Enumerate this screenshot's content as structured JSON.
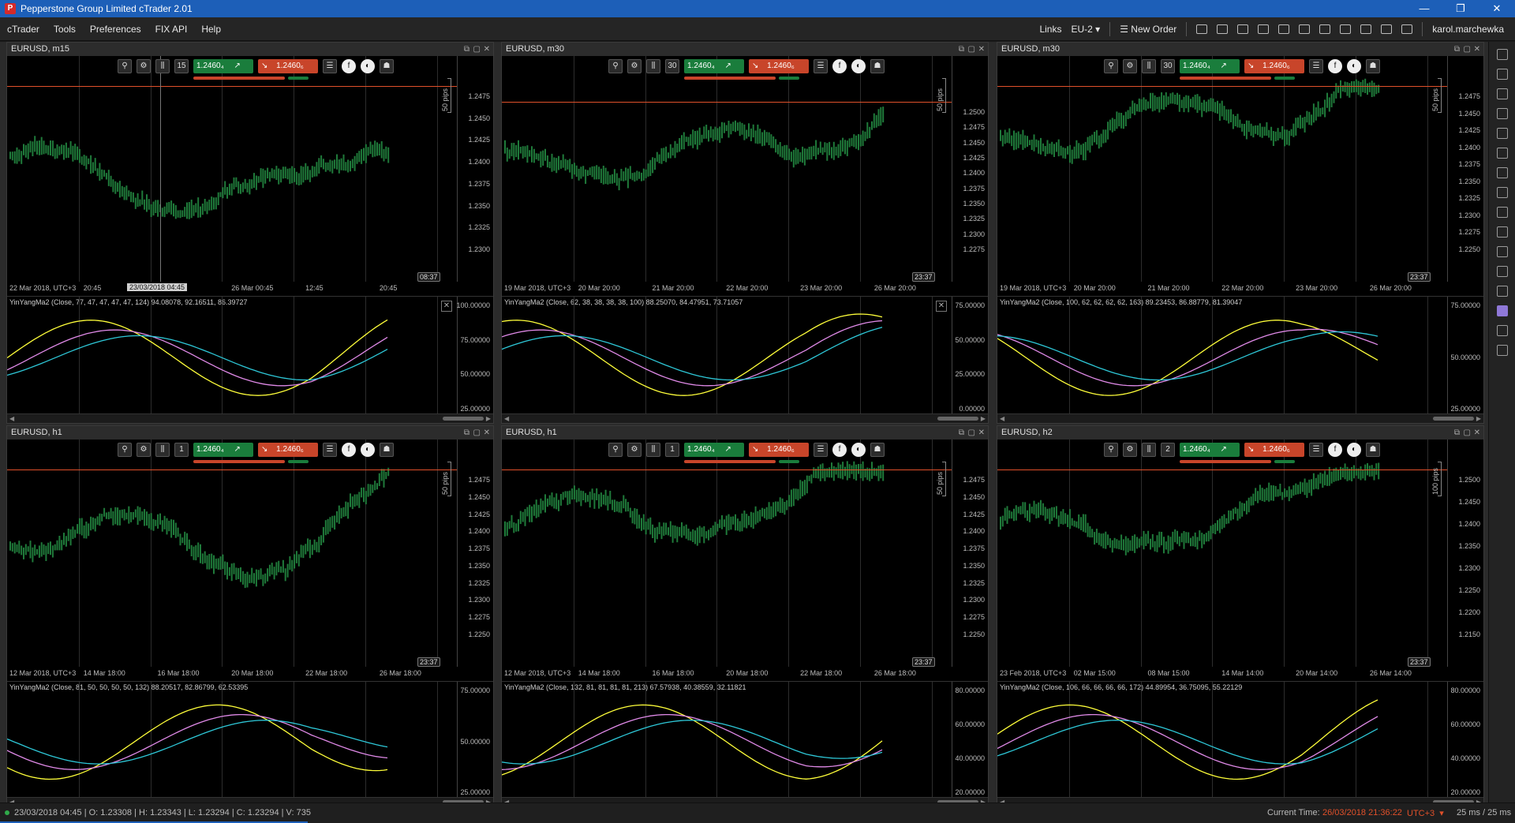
{
  "window": {
    "title": "Pepperstone Group Limited cTrader 2.01",
    "app_icon": "P",
    "controls": [
      "—",
      "❐",
      "✕"
    ]
  },
  "menu": {
    "items": [
      "cTrader",
      "Tools",
      "Preferences",
      "FIX API",
      "Help"
    ],
    "links_label": "Links",
    "server_label": "EU-2",
    "new_order_label": "New Order",
    "user_name": "karol.marchewka"
  },
  "colors": {
    "buy": "#1a7d3c",
    "sell": "#c8452a",
    "price_line": "#e0502a",
    "candles": "#1f7a3a",
    "ind_yellow": "#ffff3a",
    "ind_violet": "#e08ae8",
    "ind_cyan": "#2ec8d8"
  },
  "charts": [
    {
      "title": "EURUSD, m15",
      "period_badge": "15",
      "buy_price": "1.2460₄",
      "sell_price": "1.2460₆",
      "price_tag": "1.24604",
      "pips_label": "50 pips",
      "y_labels": [
        "1.2475",
        "1.2450",
        "1.2425",
        "1.2400",
        "1.2375",
        "1.2350",
        "1.2325",
        "1.2300"
      ],
      "x_labels": [
        "22 Mar 2018, UTC+3",
        "20:45",
        "16:45",
        "26 Mar 00:45",
        "12:45",
        "20:45"
      ],
      "crosshair_time": "23/03/2018 04:45",
      "time_tag": "08:37",
      "indicator": "YinYangMa2 (Close, 77, 47, 47, 47, 47, 124) 94.08078, 92.16511, 86.39727",
      "ind_y_labels": [
        "100.00000",
        "75.00000",
        "50.00000",
        "25.00000"
      ]
    },
    {
      "title": "EURUSD, m30",
      "period_badge": "30",
      "buy_price": "1.2460₄",
      "sell_price": "1.2460₆",
      "price_tag": "1.24604",
      "pips_label": "50 pips",
      "y_labels": [
        "1.2500",
        "1.2475",
        "1.2450",
        "1.2425",
        "1.2400",
        "1.2375",
        "1.2350",
        "1.2325",
        "1.2300",
        "1.2275"
      ],
      "x_labels": [
        "19 Mar 2018, UTC+3",
        "20 Mar 20:00",
        "21 Mar 20:00",
        "22 Mar 20:00",
        "23 Mar 20:00",
        "26 Mar 20:00"
      ],
      "time_tag": "23:37",
      "indicator": "YinYangMa2 (Close, 62, 38, 38, 38, 38, 100) 88.25070, 84.47951, 73.71057",
      "ind_y_labels": [
        "75.00000",
        "50.00000",
        "25.00000",
        "0.00000"
      ]
    },
    {
      "title": "EURUSD, m30",
      "period_badge": "30",
      "buy_price": "1.2460₄",
      "sell_price": "1.2460₆",
      "price_tag": "1.24604",
      "pips_label": "50 pips",
      "y_labels": [
        "1.2475",
        "1.2450",
        "1.2425",
        "1.2400",
        "1.2375",
        "1.2350",
        "1.2325",
        "1.2300",
        "1.2275",
        "1.2250"
      ],
      "x_labels": [
        "19 Mar 2018, UTC+3",
        "20 Mar 20:00",
        "21 Mar 20:00",
        "22 Mar 20:00",
        "23 Mar 20:00",
        "26 Mar 20:00"
      ],
      "time_tag": "23:37",
      "indicator": "YinYangMa2 (Close, 100, 62, 62, 62, 62, 163) 89.23453, 86.88779, 81.39047",
      "ind_y_labels": [
        "75.00000",
        "50.00000",
        "25.00000"
      ]
    },
    {
      "title": "EURUSD, h1",
      "period_badge": "1",
      "buy_price": "1.2460₄",
      "sell_price": "1.2460₆",
      "price_tag": "1.24604",
      "pips_label": "50 pips",
      "y_labels": [
        "1.2475",
        "1.2450",
        "1.2425",
        "1.2400",
        "1.2375",
        "1.2350",
        "1.2325",
        "1.2300",
        "1.2275",
        "1.2250"
      ],
      "x_labels": [
        "12 Mar 2018, UTC+3",
        "14 Mar 18:00",
        "16 Mar 18:00",
        "20 Mar 18:00",
        "22 Mar 18:00",
        "26 Mar 18:00"
      ],
      "time_tag": "23:37",
      "indicator": "YinYangMa2 (Close, 81, 50, 50, 50, 50, 132) 88.20517, 82.86799, 62.53395",
      "ind_y_labels": [
        "75.00000",
        "50.00000",
        "25.00000"
      ]
    },
    {
      "title": "EURUSD, h1",
      "period_badge": "1",
      "buy_price": "1.2460₄",
      "sell_price": "1.2460₆",
      "price_tag": "1.24604",
      "pips_label": "50 pips",
      "y_labels": [
        "1.2475",
        "1.2450",
        "1.2425",
        "1.2400",
        "1.2375",
        "1.2350",
        "1.2325",
        "1.2300",
        "1.2275",
        "1.2250"
      ],
      "x_labels": [
        "12 Mar 2018, UTC+3",
        "14 Mar 18:00",
        "16 Mar 18:00",
        "20 Mar 18:00",
        "22 Mar 18:00",
        "26 Mar 18:00"
      ],
      "time_tag": "23:37",
      "indicator": "YinYangMa2 (Close, 132, 81, 81, 81, 81, 213) 67.57938, 40.38559, 32.11821",
      "ind_y_labels": [
        "80.00000",
        "60.00000",
        "40.00000",
        "20.00000"
      ]
    },
    {
      "title": "EURUSD, h2",
      "period_badge": "2",
      "buy_price": "1.2460₄",
      "sell_price": "1.2460₆",
      "price_tag": "1.24604",
      "pips_label": "100 pips",
      "y_labels": [
        "1.2500",
        "1.2450",
        "1.2400",
        "1.2350",
        "1.2300",
        "1.2250",
        "1.2200",
        "1.2150"
      ],
      "x_labels": [
        "23 Feb 2018, UTC+3",
        "02 Mar 15:00",
        "08 Mar 15:00",
        "14 Mar 14:00",
        "20 Mar 14:00",
        "26 Mar 14:00"
      ],
      "time_tag": "23:37",
      "indicator": "YinYangMa2 (Close, 106, 66, 66, 66, 66, 172) 44.89954, 36.75095, 55.22129",
      "ind_y_labels": [
        "80.00000",
        "60.00000",
        "40.00000",
        "20.00000"
      ]
    }
  ],
  "status": {
    "bar_info": "23/03/2018 04:45 | O: 1.23308 | H: 1.23343 | L: 1.23294 | C: 1.23294 | V: 735",
    "current_time_label": "Current Time:",
    "current_time": "26/03/2018 21:36:22",
    "timezone": "UTC+3",
    "latency": "25 ms / 25 ms"
  }
}
